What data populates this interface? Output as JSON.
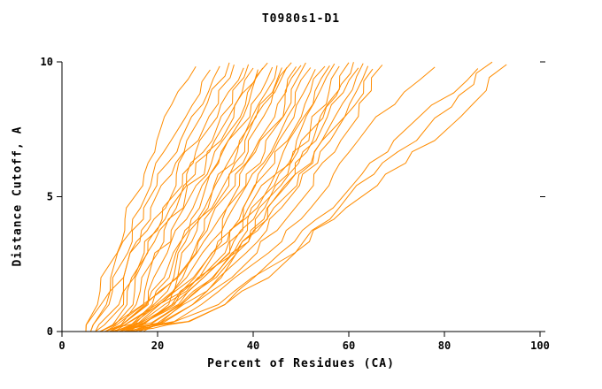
{
  "chart_data": {
    "type": "line",
    "title": "T0980s1-D1",
    "xlabel": "Percent of Residues (CA)",
    "ylabel": "Distance Cutoff, A",
    "xlim": [
      0,
      100
    ],
    "ylim": [
      0,
      10
    ],
    "x_ticks": [
      "0",
      "20",
      "40",
      "60",
      "80",
      "100"
    ],
    "x_tick_values": [
      0,
      20,
      40,
      60,
      80,
      100
    ],
    "y_ticks": [
      "0",
      "5",
      "10"
    ],
    "y_tick_values": [
      0,
      5,
      10
    ],
    "grid": false,
    "legend": "none",
    "line_color": "#ff8c00",
    "axis_color": "#000000",
    "y_anchors": [
      0,
      0.5,
      2.5,
      5,
      7.5,
      10
    ],
    "curves": [
      [
        5,
        6,
        10,
        15,
        21,
        28
      ],
      [
        5,
        7,
        11,
        17,
        24,
        31
      ],
      [
        6,
        8,
        12,
        18,
        26,
        33
      ],
      [
        6,
        9,
        13,
        20,
        28,
        35
      ],
      [
        7,
        10,
        14,
        22,
        29,
        36
      ],
      [
        7,
        11,
        15,
        23,
        30,
        38
      ],
      [
        8,
        12,
        16,
        24,
        32,
        39
      ],
      [
        8,
        13,
        17,
        25,
        33,
        40
      ],
      [
        9,
        14,
        18,
        26,
        34,
        41
      ],
      [
        9,
        15,
        19,
        27,
        35,
        42
      ],
      [
        10,
        16,
        21,
        28,
        36,
        43
      ],
      [
        10,
        17,
        22,
        29,
        37,
        44
      ],
      [
        11,
        18,
        23,
        30,
        38,
        45
      ],
      [
        11,
        19,
        24,
        31,
        39,
        46
      ],
      [
        12,
        20,
        25,
        32,
        40,
        47
      ],
      [
        12,
        21,
        26,
        33,
        41,
        48
      ],
      [
        8,
        14,
        27,
        34,
        43,
        49
      ],
      [
        9,
        15,
        28,
        35,
        44,
        50
      ],
      [
        10,
        16,
        29,
        36,
        45,
        51
      ],
      [
        11,
        17,
        30,
        38,
        46,
        52
      ],
      [
        12,
        18,
        31,
        39,
        47,
        53
      ],
      [
        13,
        19,
        32,
        40,
        48,
        55
      ],
      [
        14,
        20,
        33,
        41,
        50,
        56
      ],
      [
        15,
        21,
        34,
        42,
        51,
        57
      ],
      [
        16,
        22,
        35,
        44,
        52,
        58
      ],
      [
        17,
        23,
        36,
        45,
        53,
        60
      ],
      [
        10,
        20,
        30,
        42,
        52,
        61
      ],
      [
        11,
        21,
        32,
        44,
        54,
        62
      ],
      [
        12,
        22,
        34,
        46,
        56,
        63
      ],
      [
        13,
        23,
        36,
        48,
        58,
        65
      ],
      [
        9,
        19,
        33,
        47,
        57,
        64
      ],
      [
        14,
        24,
        38,
        50,
        60,
        67
      ],
      [
        12,
        26,
        40,
        55,
        63,
        78
      ],
      [
        13,
        30,
        44,
        58,
        72,
        87
      ],
      [
        15,
        28,
        45,
        62,
        80,
        93
      ],
      [
        14,
        31,
        46,
        60,
        76,
        90
      ]
    ]
  }
}
